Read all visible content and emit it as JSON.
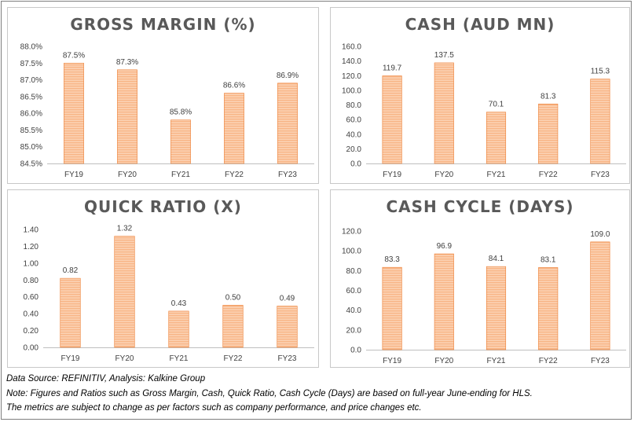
{
  "chart_data": [
    {
      "type": "bar",
      "title": "GROSS MARGIN (%)",
      "categories": [
        "FY19",
        "FY20",
        "FY21",
        "FY22",
        "FY23"
      ],
      "values": [
        87.5,
        87.3,
        85.8,
        86.6,
        86.9
      ],
      "data_labels": [
        "87.5%",
        "87.3%",
        "85.8%",
        "86.6%",
        "86.9%"
      ],
      "y_ticks": [
        "84.5%",
        "85.0%",
        "85.5%",
        "86.0%",
        "86.5%",
        "87.0%",
        "87.5%",
        "88.0%"
      ],
      "ylim": [
        84.5,
        88.0
      ],
      "grid": false,
      "legend": "none"
    },
    {
      "type": "bar",
      "title": "CASH (AUD MN)",
      "categories": [
        "FY19",
        "FY20",
        "FY21",
        "FY22",
        "FY23"
      ],
      "values": [
        119.7,
        137.5,
        70.1,
        81.3,
        115.3
      ],
      "data_labels": [
        "119.7",
        "137.5",
        "70.1",
        "81.3",
        "115.3"
      ],
      "y_ticks": [
        "0.0",
        "20.0",
        "40.0",
        "60.0",
        "80.0",
        "100.0",
        "120.0",
        "140.0",
        "160.0"
      ],
      "ylim": [
        0,
        160
      ],
      "grid": false,
      "legend": "none"
    },
    {
      "type": "bar",
      "title": "QUICK RATIO (X)",
      "categories": [
        "FY19",
        "FY20",
        "FY21",
        "FY22",
        "FY23"
      ],
      "values": [
        0.82,
        1.32,
        0.43,
        0.5,
        0.49
      ],
      "data_labels": [
        "0.82",
        "1.32",
        "0.43",
        "0.50",
        "0.49"
      ],
      "y_ticks": [
        "0.00",
        "0.20",
        "0.40",
        "0.60",
        "0.80",
        "1.00",
        "1.20",
        "1.40"
      ],
      "ylim": [
        0,
        1.4
      ],
      "grid": false,
      "legend": "none"
    },
    {
      "type": "bar",
      "title": "CASH CYCLE (DAYS)",
      "categories": [
        "FY19",
        "FY20",
        "FY21",
        "FY22",
        "FY23"
      ],
      "values": [
        83.3,
        96.9,
        84.1,
        83.1,
        109.0
      ],
      "data_labels": [
        "83.3",
        "96.9",
        "84.1",
        "83.1",
        "109.0"
      ],
      "y_ticks": [
        "0.0",
        "20.0",
        "40.0",
        "60.0",
        "80.0",
        "100.0",
        "120.0"
      ],
      "ylim": [
        0,
        120
      ],
      "grid": false,
      "legend": "none"
    }
  ],
  "colors": {
    "bar_fill": "#f8b586",
    "bar_stripe": "#fde4d0",
    "bar_edge": "#ed7d31",
    "axis": "#bfbfbf",
    "title": "#595959"
  },
  "footer": {
    "source": "Data Source: REFINITIV, Analysis: Kalkine Group",
    "note": "Note: Figures and Ratios such as Gross Margin, Cash, Quick Ratio, Cash Cycle (Days) are based on full-year June-ending for HLS.",
    "disclaimer": "The metrics are subject to change as per factors such as company performance, and price changes etc."
  }
}
